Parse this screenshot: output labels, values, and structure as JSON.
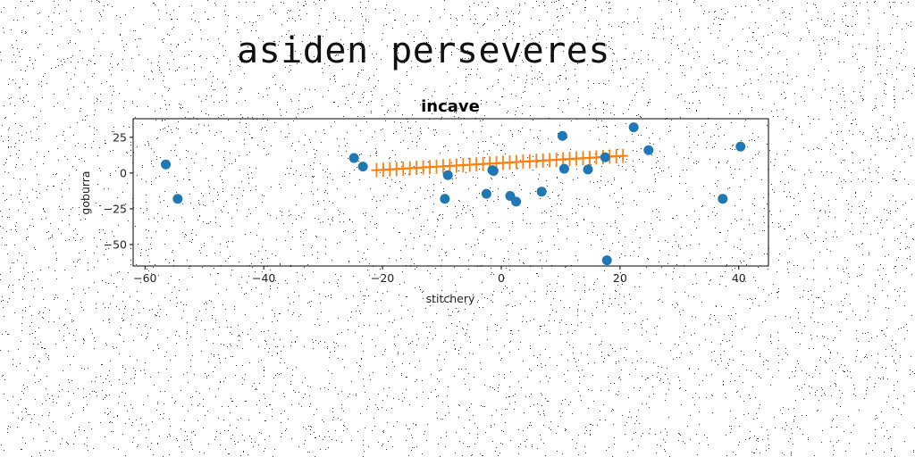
{
  "header": {
    "title": "asiden perseveres"
  },
  "chart_data": {
    "type": "scatter",
    "title": "incave",
    "xlabel": "stitchery",
    "ylabel": "goburra",
    "xlim": [
      -62,
      45
    ],
    "ylim": [
      -65,
      38
    ],
    "xticks": [
      -60,
      -40,
      -20,
      0,
      20,
      40
    ],
    "yticks": [
      -50,
      -25,
      0,
      25
    ],
    "grid": false,
    "colors": {
      "points": "#1f77b4",
      "fit": "#ff7f0e"
    },
    "series": [
      {
        "type": "scatter",
        "marker": "circle",
        "points": [
          {
            "x": -56.5,
            "y": 6
          },
          {
            "x": -54.5,
            "y": -18
          },
          {
            "x": -24.8,
            "y": 10.5
          },
          {
            "x": -23.3,
            "y": 4.5
          },
          {
            "x": -9.5,
            "y": -18
          },
          {
            "x": -9,
            "y": -1.5
          },
          {
            "x": -2.5,
            "y": -14.5
          },
          {
            "x": -1.5,
            "y": 2
          },
          {
            "x": -1.3,
            "y": 1.5
          },
          {
            "x": 1.5,
            "y": -16
          },
          {
            "x": 2.5,
            "y": -20
          },
          {
            "x": 6.8,
            "y": -13
          },
          {
            "x": 10.3,
            "y": 26
          },
          {
            "x": 10.6,
            "y": 3
          },
          {
            "x": 14.6,
            "y": 2.5
          },
          {
            "x": 17.5,
            "y": 11
          },
          {
            "x": 17.8,
            "y": -61
          },
          {
            "x": 22.3,
            "y": 32
          },
          {
            "x": 24.8,
            "y": 16
          },
          {
            "x": 37.3,
            "y": -18
          },
          {
            "x": 40.3,
            "y": 18.5
          }
        ]
      },
      {
        "type": "line",
        "marker": "plus",
        "x_start": -21,
        "x_end": 20.5,
        "count": 38,
        "y_start": 2,
        "y_end": 12
      }
    ]
  }
}
